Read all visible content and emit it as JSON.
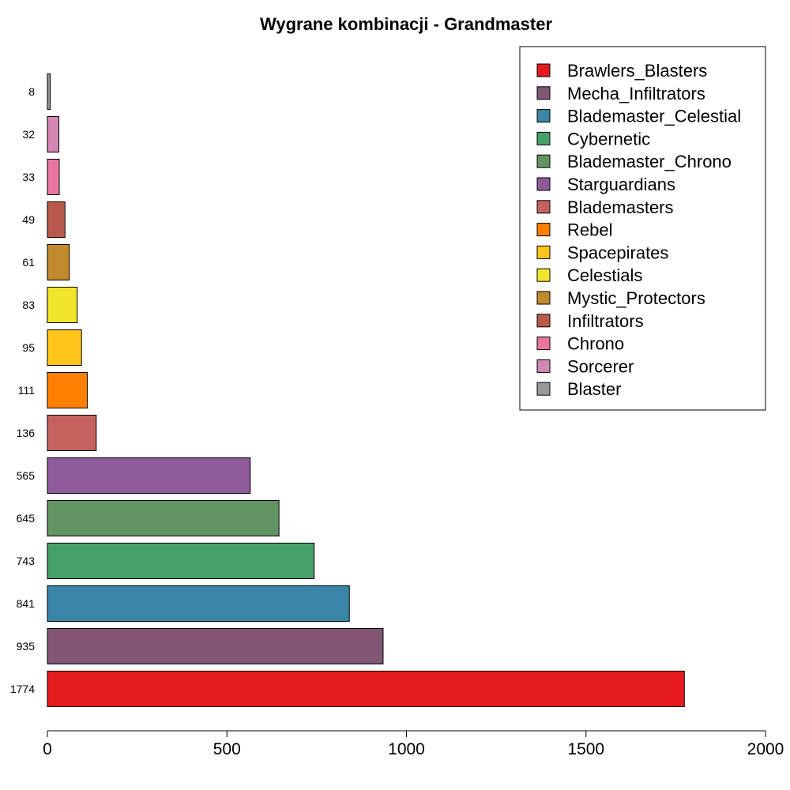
{
  "chart_data": {
    "type": "bar",
    "orientation": "horizontal",
    "title": "Wygrane kombinacji - Grandmaster",
    "xlabel": "",
    "ylabel": "",
    "xlim": [
      0,
      2000
    ],
    "x_ticks": [
      "0",
      "500",
      "1000",
      "1500",
      "2000"
    ],
    "grid": false,
    "legend_position": "top-right",
    "series": [
      {
        "name": "Brawlers_Blasters",
        "value": 1774,
        "label": "1774",
        "color": "#E41A1C"
      },
      {
        "name": "Mecha_Infiltrators",
        "value": 935,
        "label": "935",
        "color": "#815775"
      },
      {
        "name": "Blademaster_Celestial",
        "value": 841,
        "label": "841",
        "color": "#3A85A8"
      },
      {
        "name": "Cybernetic",
        "value": 743,
        "label": "743",
        "color": "#46A169"
      },
      {
        "name": "Blademaster_Chrono",
        "value": 645,
        "label": "645",
        "color": "#629363"
      },
      {
        "name": "Starguardians",
        "value": 565,
        "label": "565",
        "color": "#8F5A9A"
      },
      {
        "name": "Blademasters",
        "value": 136,
        "label": "136",
        "color": "#C4625D"
      },
      {
        "name": "Rebel",
        "value": 111,
        "label": "111",
        "color": "#FF7F00"
      },
      {
        "name": "Spacepirates",
        "value": 95,
        "label": "95",
        "color": "#FFC51A"
      },
      {
        "name": "Celestials",
        "value": 83,
        "label": "83",
        "color": "#F1E62C"
      },
      {
        "name": "Mystic_Protectors",
        "value": 61,
        "label": "61",
        "color": "#C08A2D"
      },
      {
        "name": "Infiltrators",
        "value": 49,
        "label": "49",
        "color": "#B85B4C"
      },
      {
        "name": "Chrono",
        "value": 33,
        "label": "33",
        "color": "#E8779F"
      },
      {
        "name": "Sorcerer",
        "value": 32,
        "label": "32",
        "color": "#D288B3"
      },
      {
        "name": "Blaster",
        "value": 8,
        "label": "8",
        "color": "#999999"
      }
    ]
  }
}
